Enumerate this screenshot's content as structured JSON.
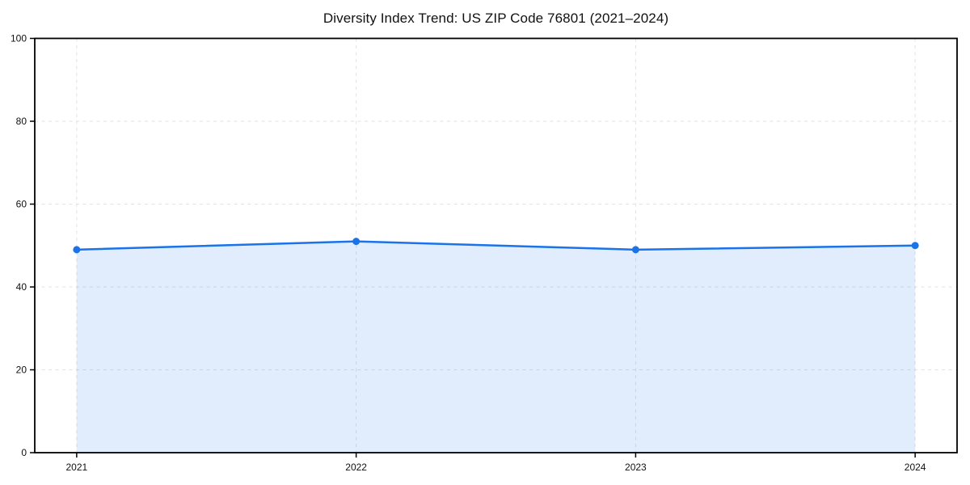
{
  "chart_data": {
    "type": "area",
    "title": "Diversity Index Trend: US ZIP Code 76801 (2021–2024)",
    "categories": [
      "2021",
      "2022",
      "2023",
      "2024"
    ],
    "series": [
      {
        "name": "Diversity Index",
        "values": [
          49,
          51,
          49,
          50
        ]
      }
    ],
    "xlabel": "",
    "ylabel": "",
    "ylim": [
      0,
      100
    ],
    "yticks": [
      0,
      20,
      40,
      60,
      80,
      100
    ],
    "grid": "dashed",
    "legend_position": "none",
    "marker": "circle",
    "colors": {
      "line": "#1a73e8",
      "fill": "#1a73e8",
      "fill_opacity": 0.13,
      "grid": "#e2e2e2",
      "axis": "#000000",
      "text": "#111111",
      "background": "#ffffff"
    }
  }
}
